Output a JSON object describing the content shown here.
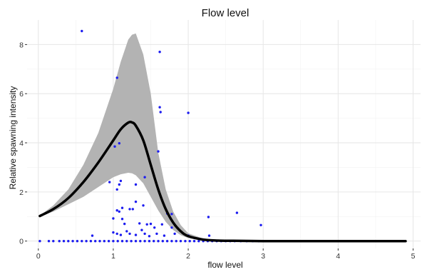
{
  "chart_data": {
    "type": "scatter",
    "title": "Flow level",
    "xlabel": "flow level",
    "ylabel": "Relative spawning intensity",
    "xlim": [
      -0.15,
      5.1
    ],
    "ylim": [
      -0.3,
      9.0
    ],
    "x_ticks": [
      0,
      1,
      2,
      3,
      4,
      5
    ],
    "y_ticks": [
      0,
      2,
      4,
      6,
      8
    ],
    "x_tick_labels": [
      "0",
      "1",
      "2",
      "3",
      "4",
      "5"
    ],
    "y_tick_labels": [
      "0",
      "2",
      "4",
      "6",
      "8"
    ],
    "grid": true,
    "colors": {
      "points": "#1c1cf0",
      "fit_line": "#000000",
      "ci_band": "#b3b3b3",
      "grid_major": "#e6e6e6",
      "grid_minor": "#f2f2f2"
    },
    "fit": {
      "name": "",
      "x": [
        0.02,
        0.2,
        0.4,
        0.6,
        0.8,
        1.0,
        1.1,
        1.2,
        1.25,
        1.3,
        1.4,
        1.5,
        1.6,
        1.7,
        1.8,
        1.9,
        2.0,
        2.2,
        2.4,
        2.6,
        3.0,
        3.5,
        4.0,
        4.5,
        4.9
      ],
      "y": [
        1.02,
        1.3,
        1.75,
        2.4,
        3.2,
        4.1,
        4.55,
        4.82,
        4.83,
        4.7,
        4.1,
        3.1,
        2.1,
        1.3,
        0.75,
        0.4,
        0.2,
        0.06,
        0.02,
        0.01,
        0.0,
        0.0,
        0.0,
        0.0,
        0.0
      ],
      "lower": [
        1.0,
        1.2,
        1.5,
        1.8,
        2.2,
        2.6,
        2.72,
        2.78,
        2.76,
        2.68,
        2.35,
        1.8,
        1.25,
        0.78,
        0.45,
        0.24,
        0.12,
        0.03,
        0.01,
        0.0,
        0.0,
        0.0,
        0.0,
        0.0,
        0.0
      ],
      "upper": [
        1.04,
        1.45,
        2.1,
        3.1,
        4.4,
        6.2,
        7.3,
        8.2,
        8.4,
        8.45,
        7.6,
        6.0,
        3.6,
        2.1,
        1.2,
        0.65,
        0.32,
        0.1,
        0.04,
        0.02,
        0.0,
        0.0,
        0.0,
        0.0,
        0.0
      ]
    },
    "points": [
      {
        "x": 0.58,
        "y": 8.55
      },
      {
        "x": 1.62,
        "y": 7.7
      },
      {
        "x": 1.05,
        "y": 6.65
      },
      {
        "x": 1.62,
        "y": 5.45
      },
      {
        "x": 1.63,
        "y": 5.25
      },
      {
        "x": 2.0,
        "y": 5.22
      },
      {
        "x": 1.08,
        "y": 3.98
      },
      {
        "x": 1.02,
        "y": 3.85
      },
      {
        "x": 1.6,
        "y": 3.65
      },
      {
        "x": 1.42,
        "y": 2.6
      },
      {
        "x": 1.1,
        "y": 2.45
      },
      {
        "x": 1.08,
        "y": 2.3
      },
      {
        "x": 1.05,
        "y": 2.1
      },
      {
        "x": 0.95,
        "y": 2.4
      },
      {
        "x": 1.3,
        "y": 2.3
      },
      {
        "x": 1.3,
        "y": 1.6
      },
      {
        "x": 1.4,
        "y": 1.45
      },
      {
        "x": 1.12,
        "y": 1.35
      },
      {
        "x": 1.05,
        "y": 1.25
      },
      {
        "x": 1.08,
        "y": 1.2
      },
      {
        "x": 1.22,
        "y": 1.3
      },
      {
        "x": 1.26,
        "y": 1.3
      },
      {
        "x": 1.72,
        "y": 1.12
      },
      {
        "x": 1.78,
        "y": 1.1
      },
      {
        "x": 2.65,
        "y": 1.15
      },
      {
        "x": 2.27,
        "y": 0.98
      },
      {
        "x": 1.0,
        "y": 0.92
      },
      {
        "x": 1.12,
        "y": 0.9
      },
      {
        "x": 1.15,
        "y": 0.7
      },
      {
        "x": 1.35,
        "y": 0.72
      },
      {
        "x": 1.45,
        "y": 0.68
      },
      {
        "x": 1.5,
        "y": 0.7
      },
      {
        "x": 1.55,
        "y": 0.55
      },
      {
        "x": 1.65,
        "y": 0.68
      },
      {
        "x": 1.78,
        "y": 0.55
      },
      {
        "x": 2.97,
        "y": 0.65
      },
      {
        "x": 1.0,
        "y": 0.35
      },
      {
        "x": 1.05,
        "y": 0.3
      },
      {
        "x": 1.1,
        "y": 0.25
      },
      {
        "x": 1.18,
        "y": 0.4
      },
      {
        "x": 1.22,
        "y": 0.3
      },
      {
        "x": 1.3,
        "y": 0.25
      },
      {
        "x": 1.38,
        "y": 0.45
      },
      {
        "x": 1.42,
        "y": 0.3
      },
      {
        "x": 1.48,
        "y": 0.2
      },
      {
        "x": 1.58,
        "y": 0.3
      },
      {
        "x": 1.68,
        "y": 0.22
      },
      {
        "x": 1.82,
        "y": 0.3
      },
      {
        "x": 0.72,
        "y": 0.22
      },
      {
        "x": 2.0,
        "y": 0.22
      },
      {
        "x": 2.28,
        "y": 0.22
      },
      {
        "x": 0.02,
        "y": 0.0
      },
      {
        "x": 0.14,
        "y": 0.0
      },
      {
        "x": 0.2,
        "y": 0.0
      },
      {
        "x": 0.28,
        "y": 0.0
      },
      {
        "x": 0.34,
        "y": 0.0
      },
      {
        "x": 0.4,
        "y": 0.0
      },
      {
        "x": 0.46,
        "y": 0.0
      },
      {
        "x": 0.52,
        "y": 0.0
      },
      {
        "x": 0.58,
        "y": 0.0
      },
      {
        "x": 0.64,
        "y": 0.0
      },
      {
        "x": 0.7,
        "y": 0.0
      },
      {
        "x": 0.76,
        "y": 0.0
      },
      {
        "x": 0.82,
        "y": 0.0
      },
      {
        "x": 0.88,
        "y": 0.0
      },
      {
        "x": 0.94,
        "y": 0.0
      },
      {
        "x": 1.0,
        "y": 0.0
      },
      {
        "x": 1.06,
        "y": 0.0
      },
      {
        "x": 1.12,
        "y": 0.0
      },
      {
        "x": 1.18,
        "y": 0.0
      },
      {
        "x": 1.24,
        "y": 0.0
      },
      {
        "x": 1.3,
        "y": 0.0
      },
      {
        "x": 1.36,
        "y": 0.0
      },
      {
        "x": 1.42,
        "y": 0.0
      },
      {
        "x": 1.48,
        "y": 0.0
      },
      {
        "x": 1.54,
        "y": 0.0
      },
      {
        "x": 1.6,
        "y": 0.0
      },
      {
        "x": 1.66,
        "y": 0.0
      },
      {
        "x": 1.72,
        "y": 0.0
      },
      {
        "x": 1.78,
        "y": 0.0
      },
      {
        "x": 1.84,
        "y": 0.0
      },
      {
        "x": 1.9,
        "y": 0.0
      },
      {
        "x": 1.96,
        "y": 0.0
      },
      {
        "x": 2.02,
        "y": 0.0
      },
      {
        "x": 2.08,
        "y": 0.0
      },
      {
        "x": 2.14,
        "y": 0.0
      },
      {
        "x": 2.2,
        "y": 0.0
      },
      {
        "x": 2.26,
        "y": 0.0
      },
      {
        "x": 2.32,
        "y": 0.0
      },
      {
        "x": 2.38,
        "y": 0.0
      },
      {
        "x": 2.44,
        "y": 0.0
      },
      {
        "x": 2.5,
        "y": 0.0
      },
      {
        "x": 2.56,
        "y": 0.0
      },
      {
        "x": 2.62,
        "y": 0.0
      },
      {
        "x": 2.7,
        "y": 0.0
      },
      {
        "x": 2.78,
        "y": 0.0
      },
      {
        "x": 2.86,
        "y": 0.0
      },
      {
        "x": 2.94,
        "y": 0.0
      },
      {
        "x": 3.02,
        "y": 0.0
      },
      {
        "x": 3.12,
        "y": 0.0
      },
      {
        "x": 3.22,
        "y": 0.0
      },
      {
        "x": 3.32,
        "y": 0.0
      },
      {
        "x": 3.42,
        "y": 0.0
      },
      {
        "x": 3.52,
        "y": 0.0
      },
      {
        "x": 3.62,
        "y": 0.0
      },
      {
        "x": 3.72,
        "y": 0.0
      },
      {
        "x": 3.82,
        "y": 0.0
      },
      {
        "x": 3.92,
        "y": 0.0
      },
      {
        "x": 4.02,
        "y": 0.0
      },
      {
        "x": 4.12,
        "y": 0.0
      },
      {
        "x": 4.22,
        "y": 0.0
      },
      {
        "x": 4.32,
        "y": 0.0
      },
      {
        "x": 4.42,
        "y": 0.0
      },
      {
        "x": 4.52,
        "y": 0.0
      },
      {
        "x": 4.62,
        "y": 0.0
      },
      {
        "x": 4.72,
        "y": 0.0
      },
      {
        "x": 4.82,
        "y": 0.0
      },
      {
        "x": 4.88,
        "y": 0.0
      }
    ]
  }
}
